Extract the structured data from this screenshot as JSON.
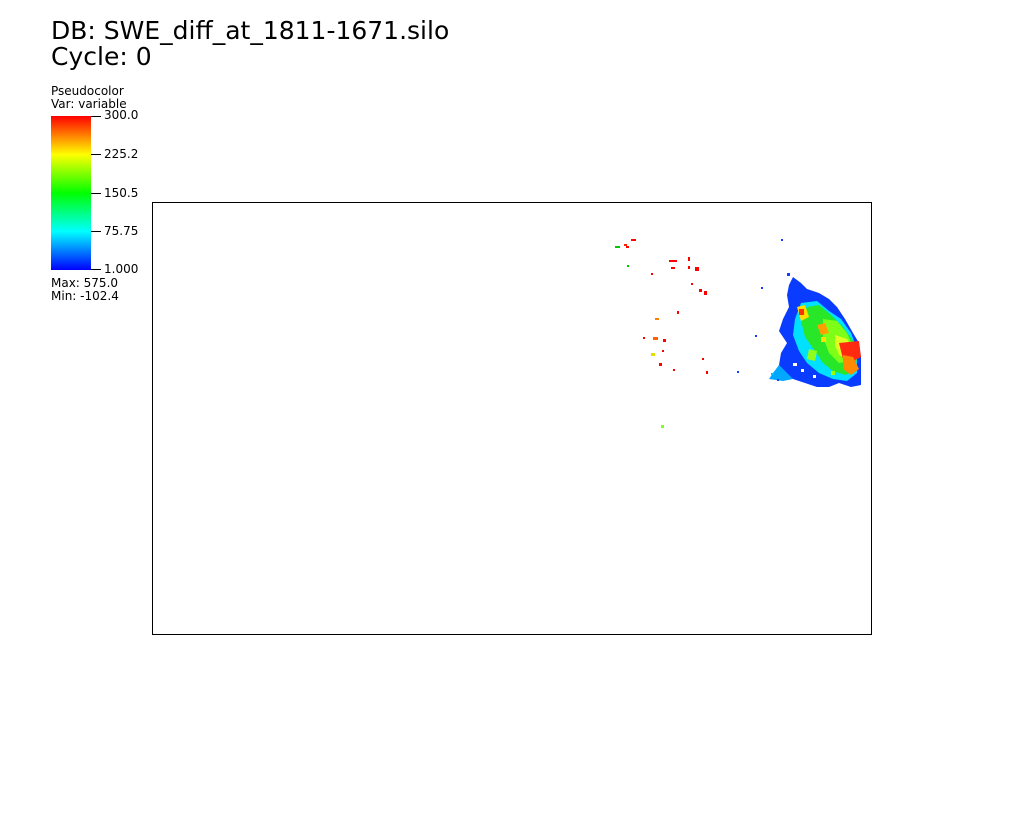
{
  "header": {
    "db_title": "DB: SWE_diff_at_1811-1671.silo",
    "cycle": "Cycle: 0"
  },
  "legend": {
    "plot_type": "Pseudocolor",
    "var_label": "Var: variable",
    "ticks": [
      "300.0",
      "225.2",
      "150.5",
      "75.75",
      "1.000"
    ],
    "max_label": "Max:  575.0",
    "min_label": "Min: -102.4",
    "colormap": [
      "#0000ff",
      "#00ffff",
      "#00ff00",
      "#ffff00",
      "#ff0000"
    ]
  },
  "plot": {
    "background": "#ffffff",
    "border_color": "#000000"
  }
}
